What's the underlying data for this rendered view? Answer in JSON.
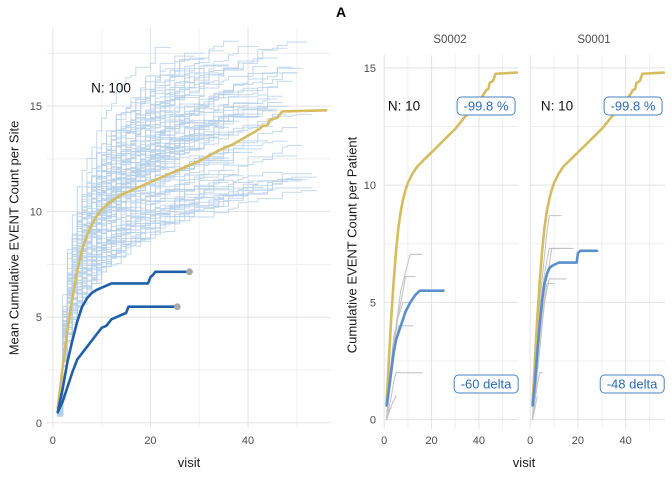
{
  "chart_data": {
    "type": "line",
    "figure_label": "A",
    "x_label": "visit",
    "colors": {
      "ensemble_blue": "#b7cfe9",
      "mean_gold": "#d6bc60",
      "flagged_site_blue": "#2160a8",
      "patient_mean_blue": "#5b8fcc",
      "patient_gray": "#c2c2c2",
      "end_dot_gray": "#a9a9a9",
      "grid_major": "#e3e3e3",
      "grid_minor": "#efefef",
      "tick_text": "#4d4d4d",
      "badge_blue": "#2b6cb0"
    },
    "left_panel": {
      "ylabel": "Mean Cumulative EVENT Count per Site",
      "annotation": "N: 100",
      "xlim": [
        -1.2,
        57
      ],
      "ylim": [
        -0.2,
        18.7
      ],
      "x_ticks": [
        0,
        20,
        40
      ],
      "y_ticks": [
        0,
        5,
        10,
        15
      ],
      "x_minor": [
        10,
        30,
        50
      ],
      "y_minor": [
        2.5,
        7.5,
        12.5,
        17.5
      ],
      "grid": true,
      "ensemble": {
        "description": "approx. 100 individual site cumulative-mean trajectories, light blue step lines",
        "count": 100,
        "seed": 11,
        "final_visit_range": [
          24,
          54
        ],
        "final_value_range": [
          10.8,
          18.2
        ]
      },
      "mean_series": {
        "name": "overall mean (gold)",
        "x": [
          1,
          2,
          3,
          4,
          5,
          6,
          7,
          8,
          9,
          10,
          12,
          14,
          17,
          20,
          23,
          26,
          30,
          34,
          37,
          40,
          41.5,
          42.5,
          43,
          44,
          44.5,
          46,
          47,
          56
        ],
        "y": [
          0.7,
          2.6,
          4.4,
          5.9,
          7.2,
          8.2,
          8.9,
          9.4,
          9.8,
          10.1,
          10.5,
          10.8,
          11.1,
          11.4,
          11.7,
          12.0,
          12.4,
          12.9,
          13.2,
          13.6,
          13.8,
          13.95,
          14.05,
          14.1,
          14.35,
          14.45,
          14.75,
          14.8
        ]
      },
      "flagged_sites": [
        {
          "name": "flagged site upper (S0001)",
          "x": [
            1,
            2,
            3,
            4,
            5,
            6,
            7,
            8,
            9,
            10,
            11,
            12,
            14,
            17,
            19.5,
            20,
            20.5,
            21,
            28
          ],
          "y": [
            0.5,
            1.6,
            2.9,
            3.9,
            4.8,
            5.5,
            5.9,
            6.15,
            6.3,
            6.4,
            6.5,
            6.6,
            6.6,
            6.6,
            6.6,
            6.9,
            7.0,
            7.15,
            7.15
          ],
          "end_dot": {
            "x": 28,
            "y": 7.15
          }
        },
        {
          "name": "flagged site lower (S0002)",
          "x": [
            1,
            2,
            3,
            4,
            5,
            6,
            7,
            8,
            9,
            10,
            11,
            12,
            13,
            14,
            15,
            15.5,
            25.5
          ],
          "y": [
            0.5,
            1.0,
            1.7,
            2.4,
            3.0,
            3.3,
            3.6,
            3.9,
            4.2,
            4.5,
            4.6,
            4.9,
            5.0,
            5.1,
            5.2,
            5.5,
            5.5
          ],
          "end_dot": {
            "x": 25.5,
            "y": 5.5
          }
        }
      ]
    },
    "right_panels": {
      "ylabel": "Cumulative EVENT Count per Patient",
      "xlim": [
        -0.3,
        56.5
      ],
      "ylim": [
        -0.4,
        15.55
      ],
      "x_ticks": [
        0,
        20,
        40
      ],
      "y_ticks": [
        0,
        5,
        10,
        15
      ],
      "x_minor": [
        10,
        30,
        50
      ],
      "y_minor": [
        2.5,
        7.5,
        12.5
      ],
      "facets": [
        {
          "title": "S0002",
          "annotation": "N: 10",
          "badge_pct": "-99.8 %",
          "badge_delta": "-60 delta",
          "site_mean_blue": {
            "x": [
              1,
              2,
              3,
              4,
              5,
              6,
              7,
              8,
              9,
              10,
              11,
              12,
              13,
              14,
              15,
              25
            ],
            "y": [
              0.6,
              1.3,
              2.1,
              2.9,
              3.4,
              3.7,
              4.0,
              4.3,
              4.6,
              4.8,
              5.0,
              5.15,
              5.3,
              5.4,
              5.5,
              5.5
            ]
          },
          "patients_gray": [
            {
              "x": [
                1,
                2,
                3,
                4,
                5,
                16
              ],
              "y": [
                0,
                0.5,
                1,
                1.6,
                2,
                2
              ]
            },
            {
              "x": [
                1,
                2,
                3,
                4,
                5,
                6,
                12
              ],
              "y": [
                0,
                1,
                1.8,
                2.6,
                3.2,
                4,
                4
              ]
            },
            {
              "x": [
                1,
                2,
                3,
                4,
                6,
                8,
                10
              ],
              "y": [
                0,
                1.5,
                2.5,
                3.5,
                4.4,
                5,
                5
              ]
            },
            {
              "x": [
                1,
                2,
                4,
                6,
                8,
                9,
                13
              ],
              "y": [
                0,
                1.2,
                3,
                4.5,
                5.5,
                6.1,
                6.1
              ]
            },
            {
              "x": [
                1,
                3,
                5,
                7,
                9,
                11,
                16
              ],
              "y": [
                0,
                2,
                4,
                5.5,
                6.3,
                7.05,
                7.05
              ]
            },
            {
              "x": [
                1,
                2,
                3,
                4,
                5
              ],
              "y": [
                0,
                0.3,
                0.6,
                0.8,
                1
              ]
            },
            {
              "x": [
                1,
                1.5,
                2,
                3
              ],
              "y": [
                0,
                0.2,
                0.4,
                0.5
              ]
            }
          ]
        },
        {
          "title": "S0001",
          "annotation": "N: 10",
          "badge_pct": "-99.8 %",
          "badge_delta": "-48 delta",
          "site_mean_blue": {
            "x": [
              1,
              2,
              3,
              4,
              5,
              6,
              7,
              8,
              9,
              10,
              12,
              19.5,
              20,
              21,
              28
            ],
            "y": [
              0.6,
              1.6,
              2.9,
              4.1,
              5.1,
              5.8,
              6.2,
              6.45,
              6.55,
              6.6,
              6.7,
              6.7,
              7.1,
              7.2,
              7.2
            ]
          },
          "patients_gray": [
            {
              "x": [
                1,
                2,
                3,
                4,
                5,
                6,
                7,
                8,
                15
              ],
              "y": [
                0,
                1.5,
                3,
                4.5,
                5.5,
                6.2,
                6.8,
                7.3,
                7.3
              ]
            },
            {
              "x": [
                1,
                2,
                3,
                4,
                5,
                6,
                7,
                8,
                9,
                18
              ],
              "y": [
                0,
                1,
                2.5,
                4,
                5,
                5.8,
                6.3,
                6.6,
                7.3,
                7.3
              ]
            },
            {
              "x": [
                1,
                2,
                3,
                4,
                5,
                6,
                7,
                8,
                13
              ],
              "y": [
                0,
                2,
                3.5,
                5,
                6,
                7,
                8,
                8.7,
                8.7
              ]
            },
            {
              "x": [
                1,
                2,
                3,
                4,
                5,
                6,
                8,
                15
              ],
              "y": [
                0,
                1,
                2,
                3,
                4,
                5,
                6,
                6
              ]
            },
            {
              "x": [
                1,
                2,
                3,
                4,
                5
              ],
              "y": [
                0,
                0.8,
                1.5,
                2,
                2
              ]
            },
            {
              "x": [
                1,
                2,
                3
              ],
              "y": [
                0,
                0.5,
                1
              ]
            },
            {
              "x": [
                1,
                3,
                5,
                6,
                7,
                10
              ],
              "y": [
                0,
                2.5,
                4.5,
                5.2,
                5.8,
                5.8
              ]
            }
          ]
        }
      ],
      "overall_mean_note": "same gold overall-mean curve as left panel drawn in each facet"
    }
  }
}
